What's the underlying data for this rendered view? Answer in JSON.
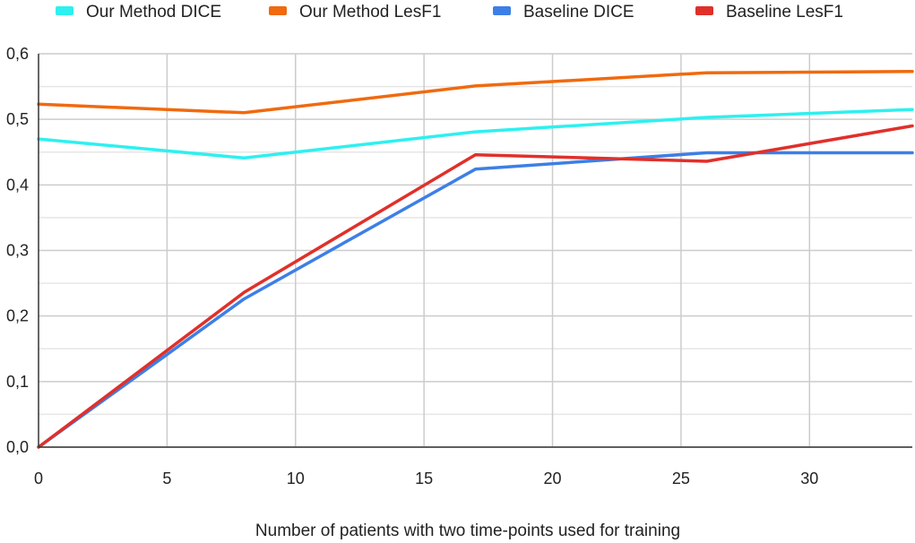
{
  "chart_data": {
    "type": "line",
    "title": "",
    "xlabel": "Number of patients with two time-points used for training",
    "ylabel": "",
    "xlim": [
      0,
      34
    ],
    "ylim": [
      0,
      0.6
    ],
    "x_ticks": [
      0,
      5,
      10,
      15,
      20,
      25,
      30
    ],
    "x_tick_labels": [
      "0",
      "5",
      "10",
      "15",
      "20",
      "25",
      "30"
    ],
    "y_ticks": [
      0,
      0.1,
      0.2,
      0.3,
      0.4,
      0.5,
      0.6
    ],
    "y_tick_labels": [
      "0,0",
      "0,1",
      "0,2",
      "0,3",
      "0,4",
      "0,5",
      "0,6"
    ],
    "grid": true,
    "legend_position": "top",
    "series": [
      {
        "name": "Our Method DICE",
        "color": "#2ef0f0",
        "x": [
          0,
          8,
          17,
          26,
          34
        ],
        "values": [
          0.47,
          0.441,
          0.481,
          0.503,
          0.515
        ]
      },
      {
        "name": "Our Method LesF1",
        "color": "#f06a0f",
        "x": [
          0,
          8,
          17,
          26,
          34
        ],
        "values": [
          0.523,
          0.51,
          0.551,
          0.571,
          0.573
        ]
      },
      {
        "name": "Baseline DICE",
        "color": "#3d7fe6",
        "x": [
          0,
          8,
          17,
          26,
          34
        ],
        "values": [
          0.0,
          0.226,
          0.424,
          0.449,
          0.449
        ]
      },
      {
        "name": "Baseline LesF1",
        "color": "#e0302a",
        "x": [
          0,
          8,
          17,
          26,
          34
        ],
        "values": [
          0.0,
          0.236,
          0.446,
          0.436,
          0.49
        ]
      }
    ]
  }
}
